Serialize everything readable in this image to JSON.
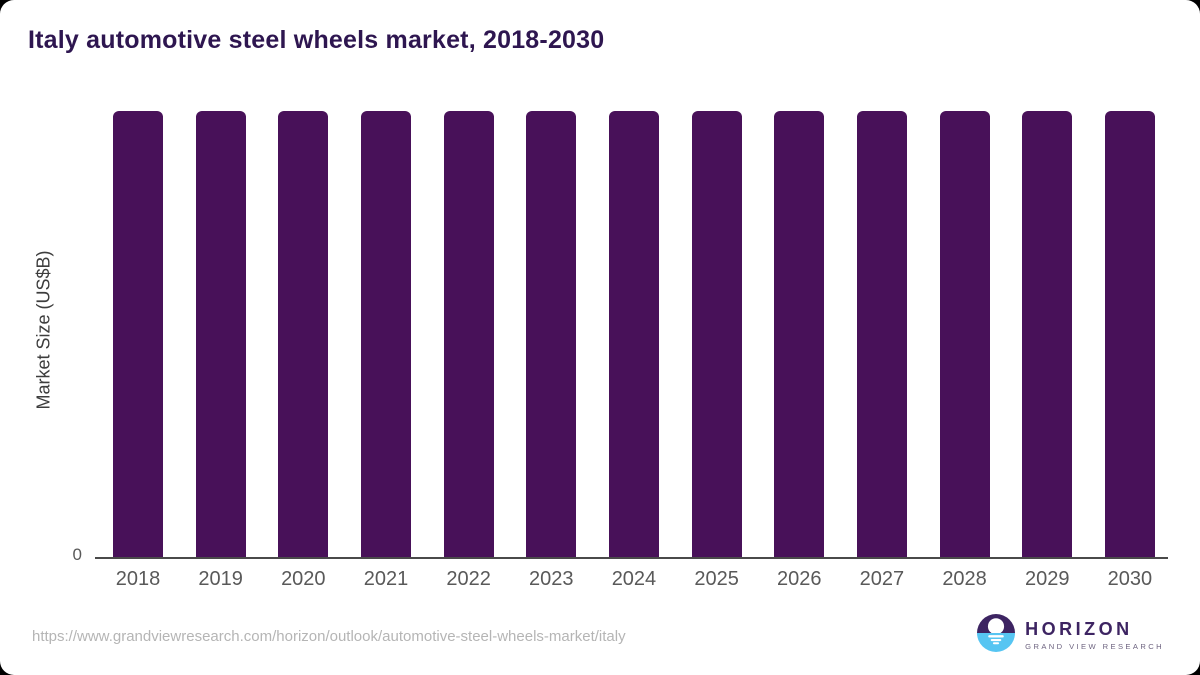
{
  "title": "Italy automotive steel wheels market, 2018-2030",
  "chart_data": {
    "type": "bar",
    "title": "Italy automotive steel wheels market, 2018-2030",
    "categories": [
      "2018",
      "2019",
      "2020",
      "2021",
      "2022",
      "2023",
      "2024",
      "2025",
      "2026",
      "2027",
      "2028",
      "2029",
      "2030"
    ],
    "values": [
      1,
      1,
      1,
      1,
      1,
      1,
      1,
      1,
      1,
      1,
      1,
      1,
      1
    ],
    "xlabel": "",
    "ylabel": "Market Size (US$B)",
    "ylim": [
      0,
      1
    ],
    "ytick_labels": [
      "0"
    ],
    "grid": false,
    "legend": false,
    "bar_color": "#481159"
  },
  "y_axis": {
    "label": "Market Size (US$B)",
    "zero_tick": "0"
  },
  "footer": {
    "source_url": "https://www.grandviewresearch.com/horizon/outlook/automotive-steel-wheels-market/italy",
    "logo": {
      "name": "HORIZON",
      "subtitle": "GRAND VIEW RESEARCH"
    }
  },
  "colors": {
    "bar": "#481159",
    "title": "#2e1650",
    "axis_line": "#4a4a4a",
    "tick_label": "#595959",
    "url_text": "#b5b5b5",
    "logo_purple": "#3d2462",
    "logo_blue": "#56c5f2",
    "card_background": "#ffffff",
    "page_background": "#000000"
  }
}
